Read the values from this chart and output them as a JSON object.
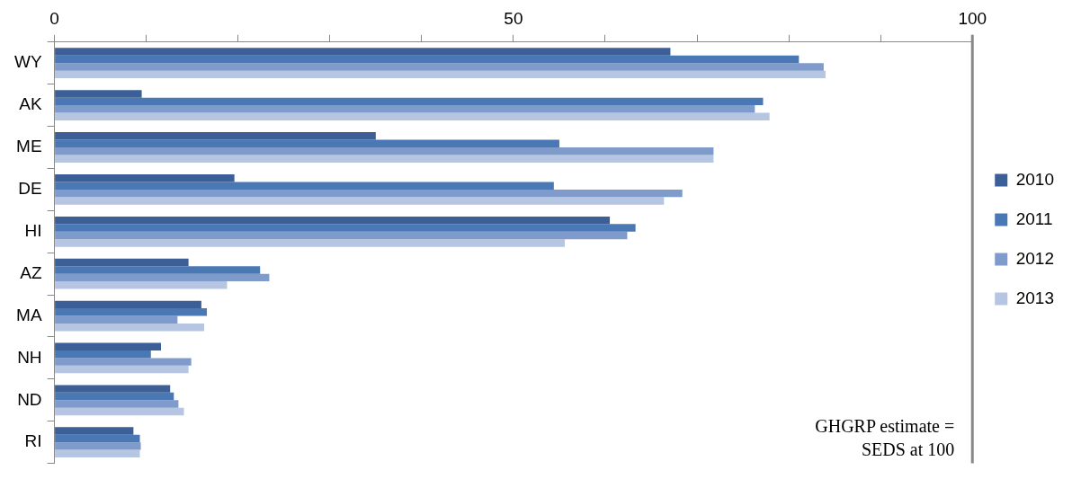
{
  "chart_data": {
    "type": "bar",
    "orientation": "horizontal",
    "categories": [
      "WY",
      "AK",
      "ME",
      "DE",
      "HI",
      "AZ",
      "MA",
      "NH",
      "ND",
      "RI"
    ],
    "series": [
      {
        "name": "2010",
        "color": "#3b5f96",
        "values": [
          67.1,
          9.5,
          35.0,
          19.6,
          60.5,
          14.6,
          16.0,
          11.6,
          12.6,
          8.6
        ]
      },
      {
        "name": "2011",
        "color": "#4a78b4",
        "values": [
          81.1,
          77.2,
          55.0,
          54.4,
          63.3,
          22.4,
          16.6,
          10.5,
          13.0,
          9.3
        ]
      },
      {
        "name": "2012",
        "color": "#7f9bcb",
        "values": [
          83.8,
          76.3,
          71.8,
          68.4,
          62.4,
          23.4,
          13.4,
          14.9,
          13.5,
          9.4
        ]
      },
      {
        "name": "2013",
        "color": "#b5c5e2",
        "values": [
          84.0,
          77.9,
          71.8,
          66.4,
          55.6,
          18.8,
          16.3,
          14.6,
          14.1,
          9.3
        ]
      }
    ],
    "xlim": [
      0,
      100
    ],
    "xticks": [
      0,
      {
        "value": 10,
        "label": null
      },
      {
        "value": 20,
        "label": null
      },
      {
        "value": 30,
        "label": null
      },
      {
        "value": 40,
        "label": null
      },
      50,
      {
        "value": 60,
        "label": null
      },
      {
        "value": 70,
        "label": null
      },
      {
        "value": 80,
        "label": null
      },
      {
        "value": 90,
        "label": null
      },
      100
    ],
    "grid": false,
    "legend": "right",
    "annotations": [
      "GHGRP estimate = SEDS at 100"
    ]
  }
}
